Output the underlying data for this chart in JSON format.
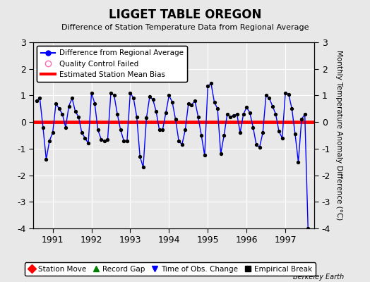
{
  "title": "LIGGET TABLE OREGON",
  "subtitle": "Difference of Station Temperature Data from Regional Average",
  "ylabel_right": "Monthly Temperature Anomaly Difference (°C)",
  "credit": "Berkeley Earth",
  "xlim": [
    1990.5,
    1997.75
  ],
  "ylim": [
    -4,
    3
  ],
  "yticks": [
    -4,
    -3,
    -2,
    -1,
    0,
    1,
    2,
    3
  ],
  "xticks": [
    1991,
    1992,
    1993,
    1994,
    1995,
    1996,
    1997
  ],
  "bias": 0.0,
  "background_color": "#e8e8e8",
  "plot_bg_color": "#e8e8e8",
  "line_color": "#0000ff",
  "bias_color": "#ff0000",
  "dot_color": "#000000",
  "legend1_items": [
    {
      "label": "Difference from Regional Average",
      "color": "#0000ff",
      "marker": "o"
    },
    {
      "label": "Quality Control Failed",
      "color": "#ff69b4",
      "marker": "o"
    },
    {
      "label": "Estimated Station Mean Bias",
      "color": "#ff0000",
      "marker": null
    }
  ],
  "legend2_items": [
    {
      "label": "Station Move",
      "color": "#ff0000",
      "marker": "D"
    },
    {
      "label": "Record Gap",
      "color": "#008000",
      "marker": "^"
    },
    {
      "label": "Time of Obs. Change",
      "color": "#0000ff",
      "marker": "v"
    },
    {
      "label": "Empirical Break",
      "color": "#000000",
      "marker": "s"
    }
  ],
  "data_x": [
    1990.583,
    1990.667,
    1990.75,
    1990.833,
    1990.917,
    1991.0,
    1991.083,
    1991.167,
    1991.25,
    1991.333,
    1991.417,
    1991.5,
    1991.583,
    1991.667,
    1991.75,
    1991.833,
    1991.917,
    1992.0,
    1992.083,
    1992.167,
    1992.25,
    1992.333,
    1992.417,
    1992.5,
    1992.583,
    1992.667,
    1992.75,
    1992.833,
    1992.917,
    1993.0,
    1993.083,
    1993.167,
    1993.25,
    1993.333,
    1993.417,
    1993.5,
    1993.583,
    1993.667,
    1993.75,
    1993.833,
    1993.917,
    1994.0,
    1994.083,
    1994.167,
    1994.25,
    1994.333,
    1994.417,
    1994.5,
    1994.583,
    1994.667,
    1994.75,
    1994.833,
    1994.917,
    1995.0,
    1995.083,
    1995.167,
    1995.25,
    1995.333,
    1995.417,
    1995.5,
    1995.583,
    1995.667,
    1995.75,
    1995.833,
    1995.917,
    1996.0,
    1996.083,
    1996.167,
    1996.25,
    1996.333,
    1996.417,
    1996.5,
    1996.583,
    1996.667,
    1996.75,
    1996.833,
    1996.917,
    1997.0,
    1997.083,
    1997.167,
    1997.25,
    1997.333,
    1997.417,
    1997.5,
    1997.583
  ],
  "data_y": [
    0.8,
    0.9,
    -0.2,
    -1.4,
    -0.7,
    -0.4,
    0.7,
    0.5,
    0.3,
    -0.2,
    0.6,
    0.9,
    0.4,
    0.2,
    -0.4,
    -0.6,
    -0.8,
    1.1,
    0.7,
    -0.3,
    -0.65,
    -0.7,
    -0.65,
    1.1,
    1.0,
    0.3,
    -0.3,
    -0.7,
    -0.7,
    1.1,
    0.9,
    0.2,
    -1.3,
    -1.7,
    0.15,
    0.95,
    0.85,
    0.4,
    -0.3,
    -0.3,
    0.35,
    1.0,
    0.75,
    0.1,
    -0.7,
    -0.85,
    -0.3,
    0.7,
    0.65,
    0.8,
    0.2,
    -0.5,
    -1.25,
    1.35,
    1.45,
    0.75,
    0.5,
    -1.2,
    -0.5,
    0.3,
    0.2,
    0.25,
    0.3,
    -0.4,
    0.3,
    0.55,
    0.35,
    -0.2,
    -0.85,
    -0.95,
    -0.4,
    1.0,
    0.9,
    0.6,
    0.3,
    -0.35,
    -0.6,
    1.1,
    1.05,
    0.5,
    -0.45,
    -1.5,
    0.1,
    0.3,
    -4.0
  ]
}
